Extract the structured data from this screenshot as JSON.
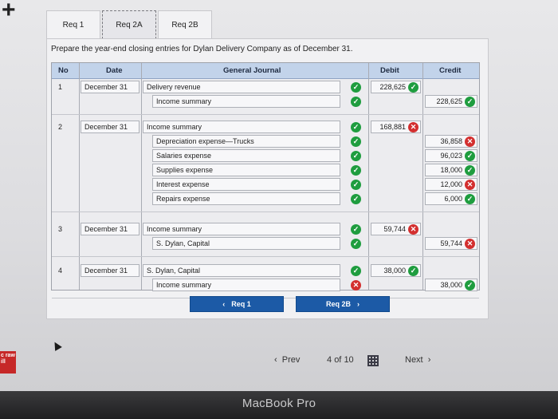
{
  "tabs": [
    "Req 1",
    "Req 2A",
    "Req 2B"
  ],
  "instruction": "Prepare the year-end closing entries for Dylan Delivery Company as of December 31.",
  "journal": {
    "headers": {
      "no": "No",
      "date": "Date",
      "general_journal": "General Journal",
      "debit": "Debit",
      "credit": "Credit"
    },
    "entries": [
      {
        "no": "1",
        "date": "December 31",
        "lines": [
          {
            "account": "Delivery revenue",
            "debit": "228,625",
            "credit": "",
            "status": "ok",
            "amount_status": "ok"
          },
          {
            "account": "Income summary",
            "debit": "",
            "credit": "228,625",
            "status": "ok",
            "amount_status": "ok"
          }
        ]
      },
      {
        "no": "2",
        "date": "December 31",
        "lines": [
          {
            "account": "Income summary",
            "debit": "168,881",
            "credit": "",
            "status": "ok",
            "amount_status": "bad"
          },
          {
            "account": "Depreciation expense—Trucks",
            "debit": "",
            "credit": "36,858",
            "status": "ok",
            "amount_status": "bad"
          },
          {
            "account": "Salaries expense",
            "debit": "",
            "credit": "96,023",
            "status": "ok",
            "amount_status": "ok"
          },
          {
            "account": "Supplies expense",
            "debit": "",
            "credit": "18,000",
            "status": "ok",
            "amount_status": "ok"
          },
          {
            "account": "Interest expense",
            "debit": "",
            "credit": "12,000",
            "status": "ok",
            "amount_status": "bad"
          },
          {
            "account": "Repairs expense",
            "debit": "",
            "credit": "6,000",
            "status": "ok",
            "amount_status": "ok"
          }
        ]
      },
      {
        "no": "3",
        "date": "December 31",
        "lines": [
          {
            "account": "Income summary",
            "debit": "59,744",
            "credit": "",
            "status": "ok",
            "amount_status": "bad"
          },
          {
            "account": "S. Dylan, Capital",
            "debit": "",
            "credit": "59,744",
            "status": "ok",
            "amount_status": "bad"
          }
        ]
      },
      {
        "no": "4",
        "date": "December 31",
        "lines": [
          {
            "account": "S. Dylan, Capital",
            "debit": "38,000",
            "credit": "",
            "status": "ok",
            "amount_status": "ok"
          },
          {
            "account": "Income summary",
            "debit": "",
            "credit": "38,000",
            "status": "bad",
            "amount_status": "ok"
          }
        ]
      }
    ]
  },
  "buttons": {
    "prev_req": "Req 1",
    "next_req": "Req 2B"
  },
  "pager": {
    "prev": "Prev",
    "current": "4",
    "of": "of",
    "total": "10",
    "next": "Next"
  },
  "logo_text": "c raw ill",
  "bezel_label": "MacBook Pro",
  "colors": {
    "ok": "#1f9d3f",
    "bad": "#d32f2f",
    "accent": "#1c5aa6",
    "header": "#c2d3ea"
  }
}
